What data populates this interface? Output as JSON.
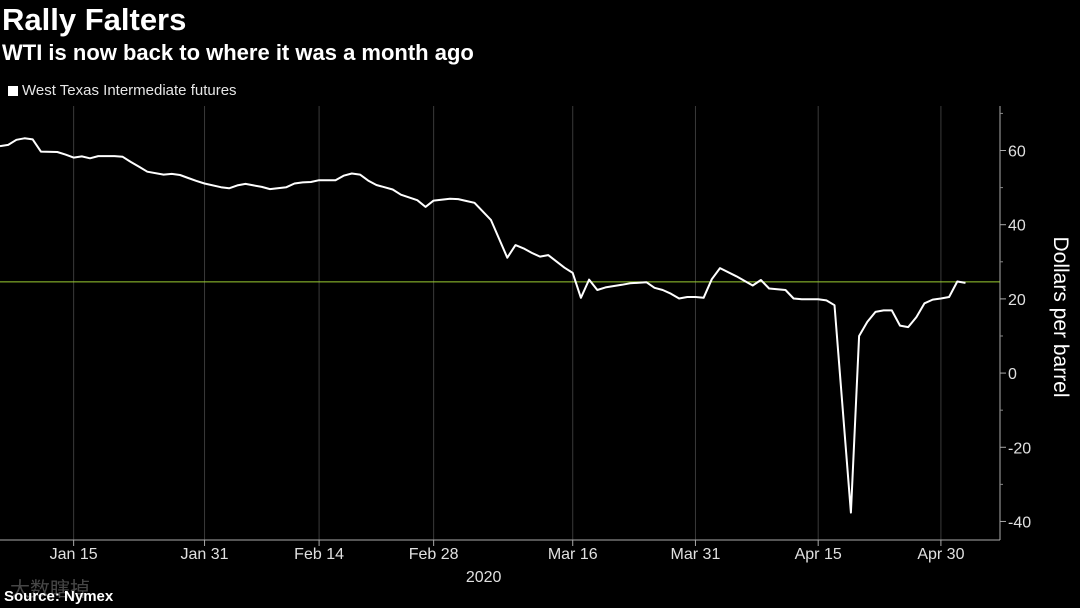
{
  "header": {
    "title": "Rally Falters",
    "subtitle": "WTI is now back to where it was a month ago"
  },
  "source": "Source: Nymex",
  "watermark": "大数瞎掉",
  "colors": {
    "background": "#000000",
    "line": "#ffffff",
    "reference_line": "#9acd32",
    "grid": "#3a3a3a"
  },
  "chart_data": {
    "type": "line",
    "x_axis": {
      "year_label": "2020",
      "ticks": [
        {
          "date": "2020-01-15",
          "label": "Jan 15"
        },
        {
          "date": "2020-01-31",
          "label": "Jan 31"
        },
        {
          "date": "2020-02-14",
          "label": "Feb 14"
        },
        {
          "date": "2020-02-28",
          "label": "Feb 28"
        },
        {
          "date": "2020-03-16",
          "label": "Mar 16"
        },
        {
          "date": "2020-03-31",
          "label": "Mar 31"
        },
        {
          "date": "2020-04-15",
          "label": "Apr 15"
        },
        {
          "date": "2020-04-30",
          "label": "Apr 30"
        }
      ],
      "range": [
        "2020-01-06",
        "2020-05-06"
      ]
    },
    "y_axis": {
      "label": "Dollars per barrel",
      "ticks": [
        60,
        40,
        20,
        0,
        -20,
        -40
      ],
      "range": [
        -45,
        72
      ],
      "position": "right"
    },
    "reference_line": 24.6,
    "grid": "vertical",
    "series": [
      {
        "name": "West Texas Intermediate futures",
        "points": [
          [
            "2020-01-06",
            61.2
          ],
          [
            "2020-01-07",
            61.5
          ],
          [
            "2020-01-08",
            62.9
          ],
          [
            "2020-01-09",
            63.3
          ],
          [
            "2020-01-10",
            63.0
          ],
          [
            "2020-01-11",
            59.7
          ],
          [
            "2020-01-13",
            59.6
          ],
          [
            "2020-01-14",
            58.9
          ],
          [
            "2020-01-15",
            58.1
          ],
          [
            "2020-01-16",
            58.4
          ],
          [
            "2020-01-17",
            57.9
          ],
          [
            "2020-01-18",
            58.5
          ],
          [
            "2020-01-20",
            58.5
          ],
          [
            "2020-01-21",
            58.3
          ],
          [
            "2020-01-22",
            56.9
          ],
          [
            "2020-01-23",
            55.6
          ],
          [
            "2020-01-24",
            54.3
          ],
          [
            "2020-01-26",
            53.5
          ],
          [
            "2020-01-27",
            53.7
          ],
          [
            "2020-01-28",
            53.4
          ],
          [
            "2020-01-29",
            52.6
          ],
          [
            "2020-01-30",
            51.8
          ],
          [
            "2020-01-31",
            51.1
          ],
          [
            "2020-02-02",
            50.1
          ],
          [
            "2020-02-03",
            49.8
          ],
          [
            "2020-02-04",
            50.6
          ],
          [
            "2020-02-05",
            51.0
          ],
          [
            "2020-02-06",
            50.6
          ],
          [
            "2020-02-07",
            50.2
          ],
          [
            "2020-02-08",
            49.6
          ],
          [
            "2020-02-10",
            50.1
          ],
          [
            "2020-02-11",
            51.1
          ],
          [
            "2020-02-12",
            51.4
          ],
          [
            "2020-02-13",
            51.5
          ],
          [
            "2020-02-14",
            52.0
          ],
          [
            "2020-02-16",
            52.0
          ],
          [
            "2020-02-17",
            53.2
          ],
          [
            "2020-02-18",
            53.8
          ],
          [
            "2020-02-19",
            53.5
          ],
          [
            "2020-02-20",
            51.9
          ],
          [
            "2020-02-21",
            50.7
          ],
          [
            "2020-02-23",
            49.5
          ],
          [
            "2020-02-24",
            48.1
          ],
          [
            "2020-02-26",
            46.6
          ],
          [
            "2020-02-27",
            44.8
          ],
          [
            "2020-02-28",
            46.5
          ],
          [
            "2020-03-01",
            47.0
          ],
          [
            "2020-03-02",
            46.9
          ],
          [
            "2020-03-03",
            46.4
          ],
          [
            "2020-03-04",
            45.9
          ],
          [
            "2020-03-06",
            41.3
          ],
          [
            "2020-03-08",
            31.1
          ],
          [
            "2020-03-09",
            34.5
          ],
          [
            "2020-03-10",
            33.6
          ],
          [
            "2020-03-11",
            32.4
          ],
          [
            "2020-03-12",
            31.4
          ],
          [
            "2020-03-13",
            31.8
          ],
          [
            "2020-03-15",
            28.4
          ],
          [
            "2020-03-16",
            27.0
          ],
          [
            "2020-03-17",
            20.3
          ],
          [
            "2020-03-18",
            25.2
          ],
          [
            "2020-03-19",
            22.4
          ],
          [
            "2020-03-20",
            23.1
          ],
          [
            "2020-03-22",
            23.8
          ],
          [
            "2020-03-23",
            24.2
          ],
          [
            "2020-03-25",
            24.5
          ],
          [
            "2020-03-26",
            23.0
          ],
          [
            "2020-03-27",
            22.4
          ],
          [
            "2020-03-28",
            21.4
          ],
          [
            "2020-03-29",
            20.1
          ],
          [
            "2020-03-30",
            20.5
          ],
          [
            "2020-03-31",
            20.5
          ],
          [
            "2020-04-01",
            20.3
          ],
          [
            "2020-04-02",
            25.3
          ],
          [
            "2020-04-03",
            28.3
          ],
          [
            "2020-04-05",
            26.1
          ],
          [
            "2020-04-07",
            23.6
          ],
          [
            "2020-04-08",
            25.1
          ],
          [
            "2020-04-09",
            22.8
          ],
          [
            "2020-04-11",
            22.4
          ],
          [
            "2020-04-12",
            20.1
          ],
          [
            "2020-04-13",
            19.9
          ],
          [
            "2020-04-15",
            19.9
          ],
          [
            "2020-04-16",
            19.6
          ],
          [
            "2020-04-17",
            18.3
          ],
          [
            "2020-04-19",
            -37.6
          ],
          [
            "2020-04-20",
            10.0
          ],
          [
            "2020-04-21",
            13.8
          ],
          [
            "2020-04-22",
            16.5
          ],
          [
            "2020-04-23",
            16.9
          ],
          [
            "2020-04-24",
            16.9
          ],
          [
            "2020-04-25",
            12.8
          ],
          [
            "2020-04-26",
            12.4
          ],
          [
            "2020-04-27",
            15.1
          ],
          [
            "2020-04-28",
            18.8
          ],
          [
            "2020-04-29",
            19.8
          ],
          [
            "2020-04-30",
            20.1
          ],
          [
            "2020-05-01",
            20.5
          ],
          [
            "2020-05-02",
            24.7
          ],
          [
            "2020-05-03",
            24.3
          ]
        ]
      }
    ]
  }
}
